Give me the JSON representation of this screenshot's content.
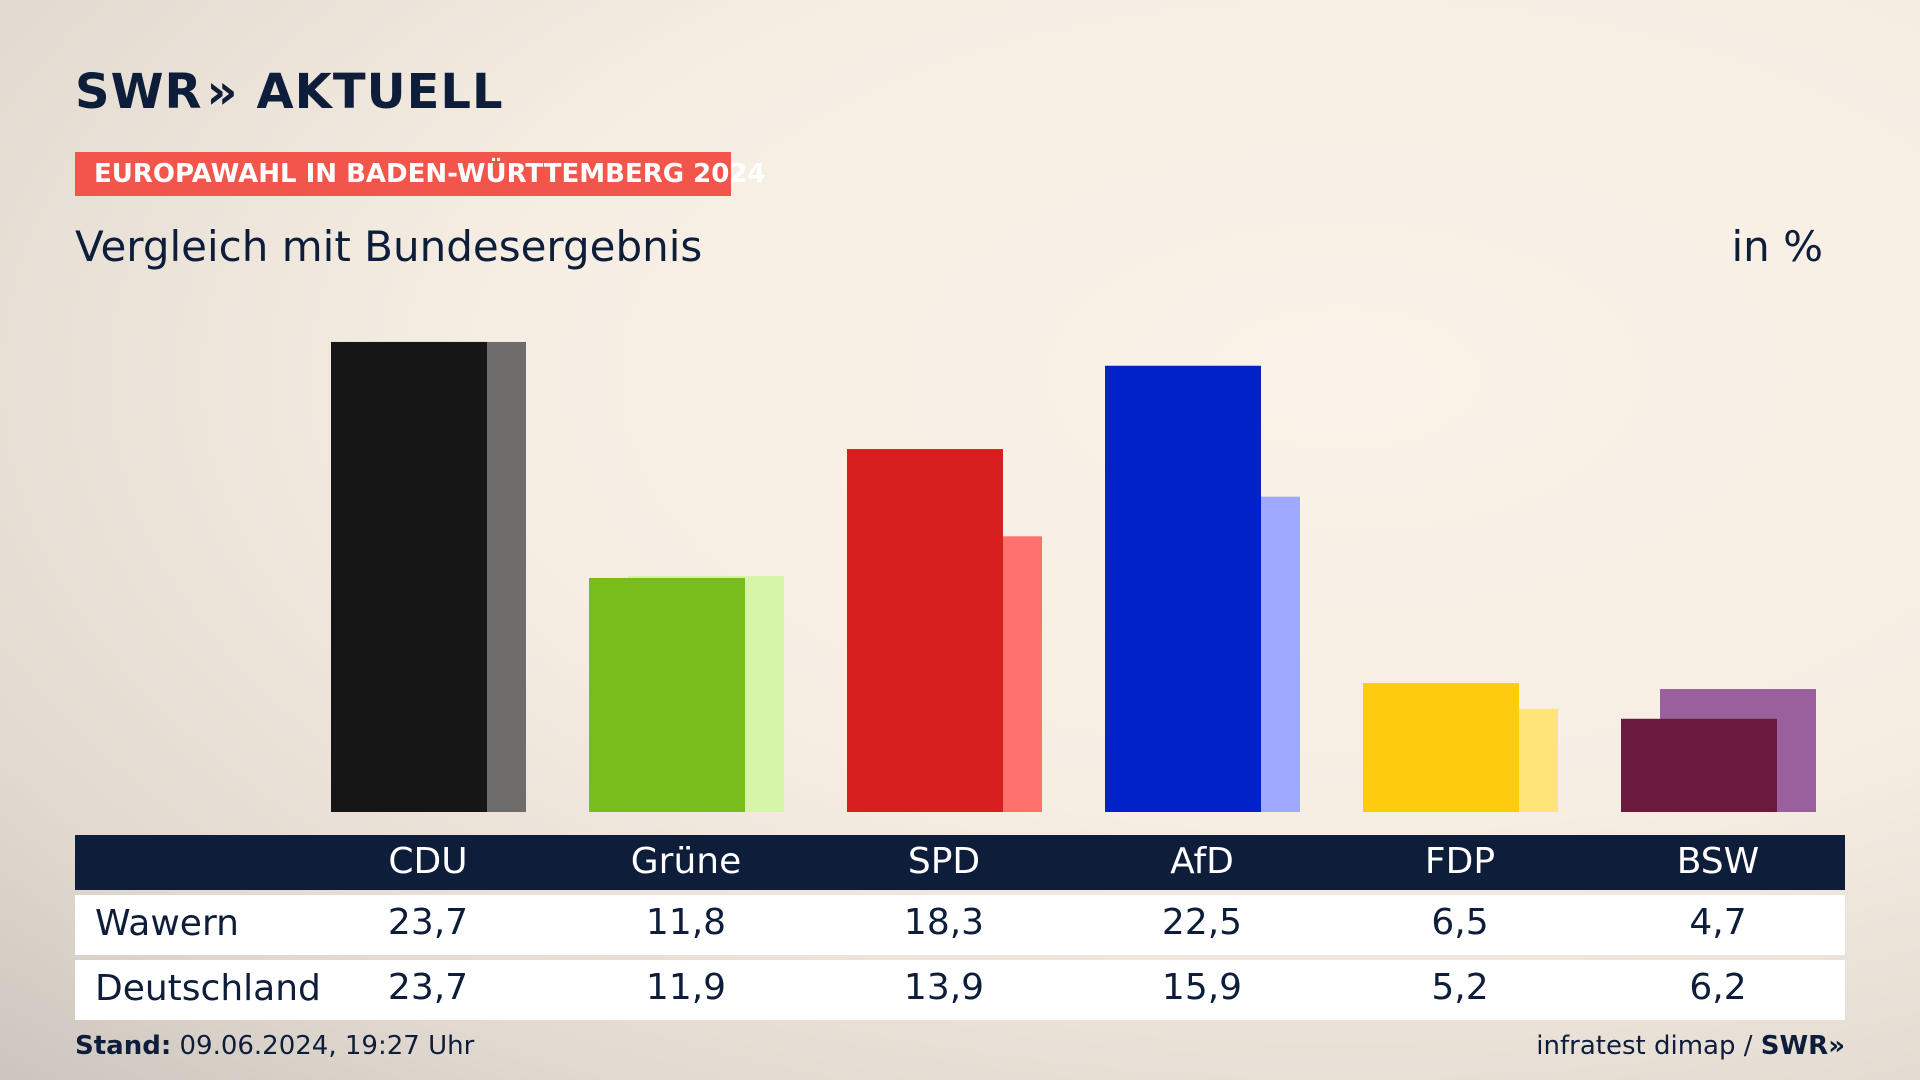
{
  "brand": {
    "logo_text": "SWR",
    "logo_chevron": "»",
    "logo_suffix": "AKTUELL"
  },
  "kicker": "EUROPAWAHL IN BADEN-WÜRTTEMBERG 2024",
  "subtitle": "Vergleich mit Bundesergebnis",
  "unit": "in %",
  "footer": {
    "stand_label": "Stand:",
    "stand_value": "09.06.2024, 19:27 Uhr",
    "source": "infratest dimap",
    "separator": "/",
    "source_logo": "SWR»"
  },
  "chart_data": {
    "type": "bar",
    "categories": [
      "CDU",
      "Grüne",
      "SPD",
      "AfD",
      "FDP",
      "BSW"
    ],
    "series": [
      {
        "name": "Wawern",
        "values": [
          23.7,
          11.8,
          18.3,
          22.5,
          6.5,
          4.7
        ]
      },
      {
        "name": "Deutschland",
        "values": [
          23.7,
          11.9,
          13.9,
          15.9,
          5.2,
          6.2
        ]
      }
    ],
    "display_values": [
      [
        "23,7",
        "11,8",
        "18,3",
        "22,5",
        "6,5",
        "4,7"
      ],
      [
        "23,7",
        "11,9",
        "13,9",
        "15,9",
        "5,2",
        "6,2"
      ]
    ],
    "colors_primary": [
      "#161616",
      "#79bd1d",
      "#d71f1f",
      "#0022c8",
      "#ffcc0d",
      "#6b1a3f"
    ],
    "colors_secondary": [
      "#6f6d6b",
      "#d6f5a9",
      "#ff716c",
      "#9ea9ff",
      "#ffe47a",
      "#9a5f9d"
    ],
    "ylim": [
      0,
      24
    ],
    "grid": false,
    "legend": "table-below"
  }
}
